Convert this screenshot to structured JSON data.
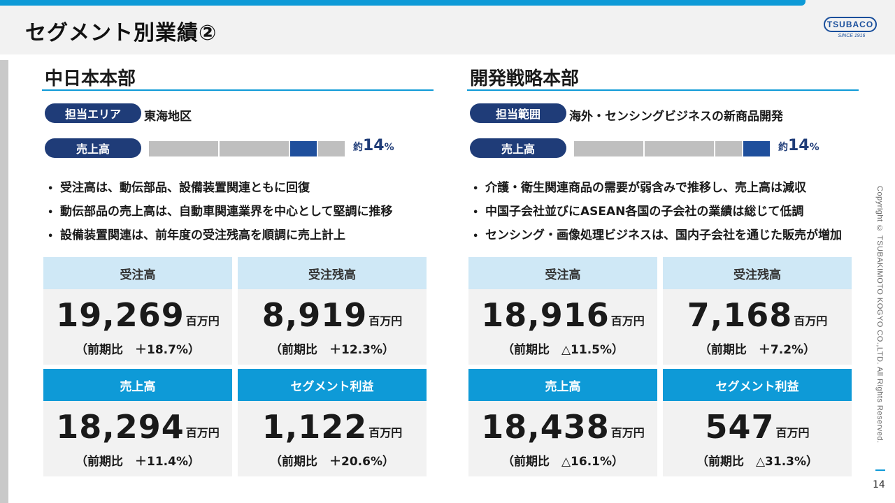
{
  "page_title": "セグメント別業績②",
  "logo": {
    "brand": "TSUBACO",
    "since": "SINCE 1916"
  },
  "copyright": "Copyright © TSUBAKIMOTO KOGYO CO.,LTD. All Rights Reserved.",
  "page_number": "14",
  "colors": {
    "accent": "#0e9ad7",
    "navy": "#1f3c78",
    "light_blue": "#cfe8f6"
  },
  "left": {
    "title": "中日本本部",
    "label1": "担当エリア",
    "label1_value": "東海地区",
    "label2": "売上高",
    "share_prefix": "約",
    "share_value": "14",
    "share_unit": "%",
    "bullets": [
      "受注高は、動伝部品、設備装置関連ともに回復",
      "動伝部品の売上高は、自動車関連業界を中心として堅調に推移",
      "設備装置関連は、前年度の受注残高を順調に売上計上"
    ],
    "cards": [
      {
        "label": "受注高",
        "value": "19,269",
        "unit": "百万円",
        "yoy": "（前期比　＋18.7%）"
      },
      {
        "label": "受注残高",
        "value": "8,919",
        "unit": "百万円",
        "yoy": "（前期比　＋12.3%）"
      },
      {
        "label": "売上高",
        "value": "18,294",
        "unit": "百万円",
        "yoy": "（前期比　＋11.4%）"
      },
      {
        "label": "セグメント利益",
        "value": "1,122",
        "unit": "百万円",
        "yoy": "（前期比　＋20.6%）"
      }
    ]
  },
  "right": {
    "title": "開発戦略本部",
    "label1": "担当範囲",
    "label1_value": "海外・センシングビジネスの新商品開発",
    "label2": "売上高",
    "share_prefix": "約",
    "share_value": "14",
    "share_unit": "%",
    "bullets": [
      "介護・衛生関連商品の需要が弱含みで推移し、売上高は減収",
      "中国子会社並びにASEAN各国の子会社の業績は総じて低調",
      "センシング・画像処理ビジネスは、国内子会社を通じた販売が増加"
    ],
    "cards": [
      {
        "label": "受注高",
        "value": "18,916",
        "unit": "百万円",
        "yoy": "（前期比　△11.5%）"
      },
      {
        "label": "受注残高",
        "value": "7,168",
        "unit": "百万円",
        "yoy": "（前期比　＋7.2%）"
      },
      {
        "label": "売上高",
        "value": "18,438",
        "unit": "百万円",
        "yoy": "（前期比　△16.1%）"
      },
      {
        "label": "セグメント利益",
        "value": "547",
        "unit": "百万円",
        "yoy": "（前期比　△31.3%）"
      }
    ]
  }
}
